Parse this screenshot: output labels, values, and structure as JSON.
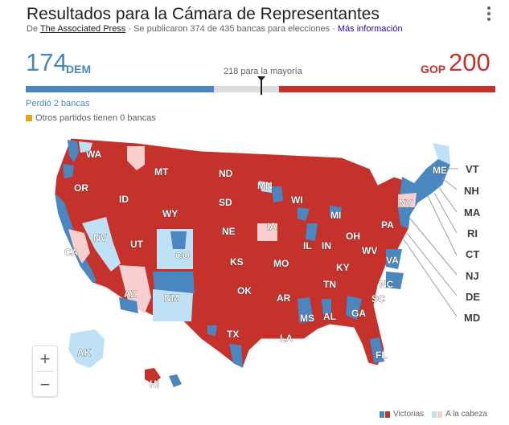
{
  "header": {
    "title": "Resultados para la Cámara de Representantes",
    "source_prefix": "De",
    "source_name": "The Associated Press",
    "source_detail": "· Se publicaron 374 de 435 bancas para elecciones ·",
    "more_info": "Más información"
  },
  "tally": {
    "dem_count": "174",
    "dem_label": "DEM",
    "gop_label": "GOP",
    "gop_count": "200",
    "majority_label": "218 para la mayoría",
    "dem_seats": 174,
    "gop_seats": 200,
    "total_seats": 435,
    "majority_seats": 218
  },
  "notes": {
    "lost": "Perdió 2 bancas",
    "others": "Otros partidos tienen 0 bancas"
  },
  "colors": {
    "dem_win": "#4a86c0",
    "dem_lead": "#bfe1f6",
    "gop_win": "#c5322c",
    "gop_lead": "#f7cfcf",
    "other": "#e8a317"
  },
  "map": {
    "states": {
      "WA": "WA",
      "OR": "OR",
      "CA": "CA",
      "ID": "ID",
      "NV": "NV",
      "MT": "MT",
      "WY": "WY",
      "UT": "UT",
      "AZ": "AZ",
      "CO": "CO",
      "NM": "NM",
      "ND": "ND",
      "SD": "SD",
      "NE": "NE",
      "KS": "KS",
      "OK": "OK",
      "TX": "TX",
      "MN": "MN",
      "IA": "IA",
      "MO": "MO",
      "AR": "AR",
      "LA": "LA",
      "WI": "WI",
      "IL": "IL",
      "MS": "MS",
      "MI": "MI",
      "IN": "IN",
      "KY": "KY",
      "TN": "TN",
      "AL": "AL",
      "GA": "GA",
      "FL": "FL",
      "OH": "OH",
      "WV": "WV",
      "VA": "VA",
      "NC": "NC",
      "SC": "SC",
      "PA": "PA",
      "NY": "NY",
      "ME": "ME",
      "AK": "AK",
      "HI": "HI"
    },
    "callouts": [
      "VT",
      "NH",
      "MA",
      "RI",
      "CT",
      "NJ",
      "DE",
      "MD"
    ]
  },
  "zoom": {
    "in": "+",
    "out": "−"
  },
  "legend": {
    "wins": "Victorias",
    "leads": "A la cabeza"
  }
}
